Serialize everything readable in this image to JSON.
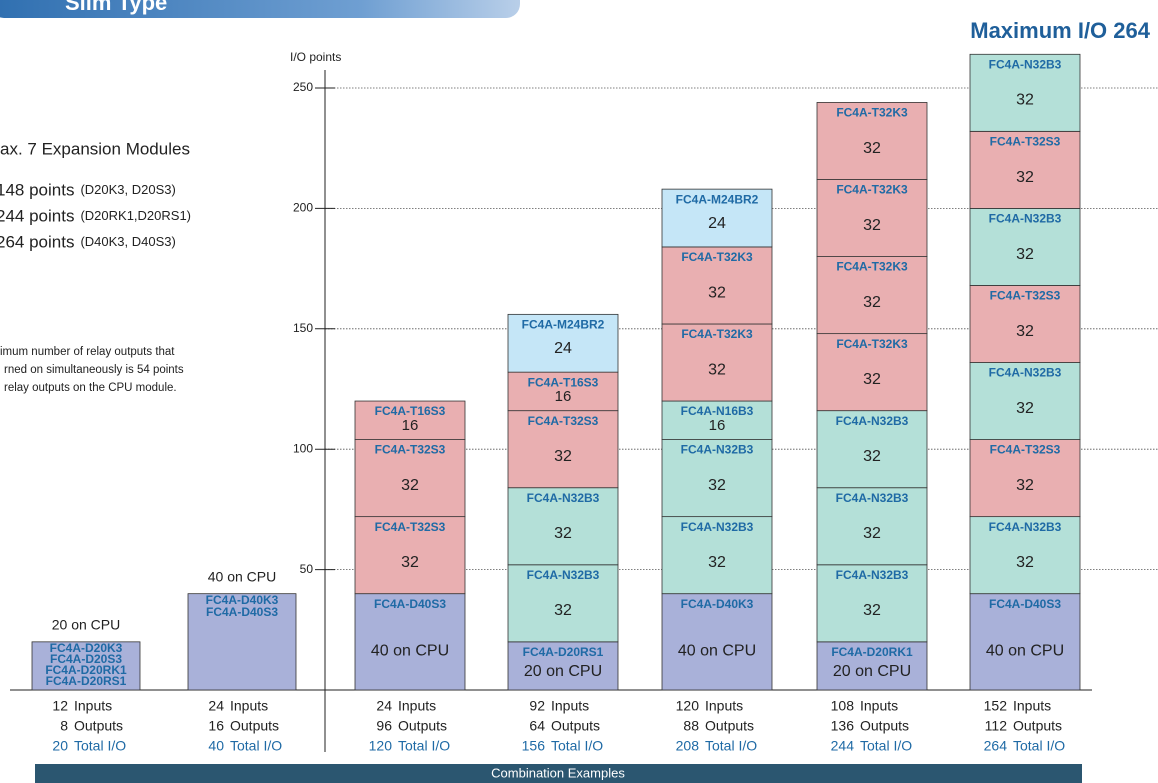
{
  "header": {
    "title": "Slim Type",
    "subtitle": "Maximum I/O 264"
  },
  "info": {
    "lines": [
      "ax. 7 Expansion Modules",
      "148 points",
      "244 points",
      "264 points"
    ],
    "notes": [
      "(D20K3, D20S3)",
      "(D20RK1,D20RS1)",
      "(D40K3, D40S3)"
    ],
    "small": [
      "imum number of relay outputs that",
      "rned on simultaneously is 54 points",
      "relay outputs on the CPU module."
    ]
  },
  "axis": {
    "label": "I/O points",
    "ylim": [
      0,
      250
    ],
    "yticks": [
      50,
      100,
      150,
      200,
      250
    ]
  },
  "io_labels": {
    "inputs": "Inputs",
    "outputs": "Outputs",
    "total": "Total I/O"
  },
  "footer": "Combination Examples",
  "cpu_columns": [
    {
      "value": 20,
      "value_label": "20 on CPU",
      "modules": [
        "FC4A-D20K3",
        "FC4A-D20S3",
        "FC4A-D20RK1",
        "FC4A-D20RS1"
      ],
      "color": "#a9b1d9",
      "inputs": 12,
      "outputs": 8,
      "total": 20
    },
    {
      "value": 40,
      "value_label": "40 on CPU",
      "modules": [
        "FC4A-D40K3",
        "FC4A-D40S3"
      ],
      "color": "#a9b1d9",
      "inputs": 24,
      "outputs": 16,
      "total": 40
    }
  ],
  "columns": [
    {
      "inputs": 24,
      "outputs": 96,
      "total": 120,
      "segments": [
        {
          "module": "FC4A-D40S3",
          "value": 40,
          "value_label": "40 on CPU",
          "color": "#a9b1d9"
        },
        {
          "module": "FC4A-T32S3",
          "value": 32,
          "color": "#e9afb1"
        },
        {
          "module": "FC4A-T32S3",
          "value": 32,
          "color": "#e9afb1"
        },
        {
          "module": "FC4A-T16S3",
          "value": 16,
          "color": "#e9afb1"
        }
      ]
    },
    {
      "inputs": 92,
      "outputs": 64,
      "total": 156,
      "segments": [
        {
          "module": "FC4A-D20RS1",
          "value": 20,
          "value_label": "20 on CPU",
          "color": "#a9b1d9"
        },
        {
          "module": "FC4A-N32B3",
          "value": 32,
          "color": "#b4e0d8"
        },
        {
          "module": "FC4A-N32B3",
          "value": 32,
          "color": "#b4e0d8"
        },
        {
          "module": "FC4A-T32S3",
          "value": 32,
          "color": "#e9afb1"
        },
        {
          "module": "FC4A-T16S3",
          "value": 16,
          "color": "#e9afb1"
        },
        {
          "module": "FC4A-M24BR2",
          "value": 24,
          "color": "#c5e6f7"
        }
      ]
    },
    {
      "inputs": 120,
      "outputs": 88,
      "total": 208,
      "segments": [
        {
          "module": "FC4A-D40K3",
          "value": 40,
          "value_label": "40 on CPU",
          "color": "#a9b1d9"
        },
        {
          "module": "FC4A-N32B3",
          "value": 32,
          "color": "#b4e0d8"
        },
        {
          "module": "FC4A-N32B3",
          "value": 32,
          "color": "#b4e0d8"
        },
        {
          "module": "FC4A-N16B3",
          "value": 16,
          "color": "#b4e0d8"
        },
        {
          "module": "FC4A-T32K3",
          "value": 32,
          "color": "#e9afb1"
        },
        {
          "module": "FC4A-T32K3",
          "value": 32,
          "color": "#e9afb1"
        },
        {
          "module": "FC4A-M24BR2",
          "value": 24,
          "color": "#c5e6f7"
        }
      ]
    },
    {
      "inputs": 108,
      "outputs": 136,
      "total": 244,
      "segments": [
        {
          "module": "FC4A-D20RK1",
          "value": 20,
          "value_label": "20 on CPU",
          "color": "#a9b1d9"
        },
        {
          "module": "FC4A-N32B3",
          "value": 32,
          "color": "#b4e0d8"
        },
        {
          "module": "FC4A-N32B3",
          "value": 32,
          "color": "#b4e0d8"
        },
        {
          "module": "FC4A-N32B3",
          "value": 32,
          "color": "#b4e0d8"
        },
        {
          "module": "FC4A-T32K3",
          "value": 32,
          "color": "#e9afb1"
        },
        {
          "module": "FC4A-T32K3",
          "value": 32,
          "color": "#e9afb1"
        },
        {
          "module": "FC4A-T32K3",
          "value": 32,
          "color": "#e9afb1"
        },
        {
          "module": "FC4A-T32K3",
          "value": 32,
          "color": "#e9afb1"
        }
      ]
    },
    {
      "inputs": 152,
      "outputs": 112,
      "total": 264,
      "segments": [
        {
          "module": "FC4A-D40S3",
          "value": 40,
          "value_label": "40 on CPU",
          "color": "#a9b1d9"
        },
        {
          "module": "FC4A-N32B3",
          "value": 32,
          "color": "#b4e0d8"
        },
        {
          "module": "FC4A-T32S3",
          "value": 32,
          "color": "#e9afb1"
        },
        {
          "module": "FC4A-N32B3",
          "value": 32,
          "color": "#b4e0d8"
        },
        {
          "module": "FC4A-T32S3",
          "value": 32,
          "color": "#e9afb1"
        },
        {
          "module": "FC4A-N32B3",
          "value": 32,
          "color": "#b4e0d8"
        },
        {
          "module": "FC4A-T32S3",
          "value": 32,
          "color": "#e9afb1"
        },
        {
          "module": "FC4A-N32B3",
          "value": 32,
          "color": "#b4e0d8"
        }
      ]
    }
  ]
}
